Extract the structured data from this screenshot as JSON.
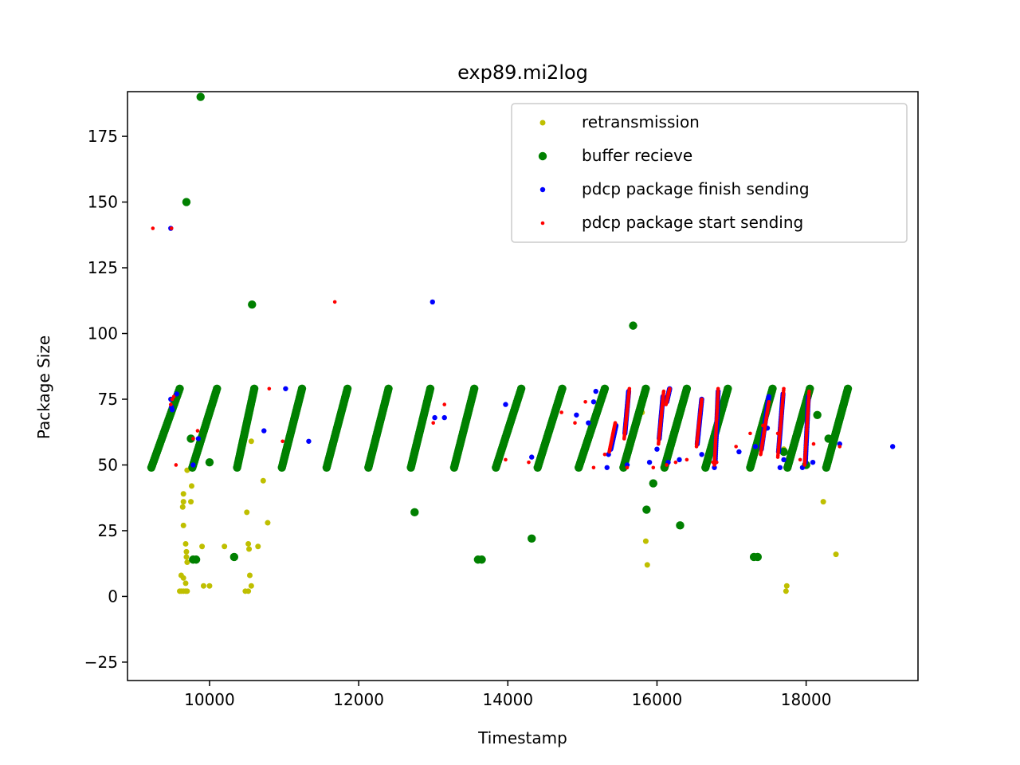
{
  "chart_data": {
    "type": "scatter",
    "title": "exp89.mi2log",
    "xlabel": "Timestamp",
    "ylabel": "Package Size",
    "xlim": [
      8900,
      19500
    ],
    "ylim": [
      -32,
      192
    ],
    "x_ticks": [
      10000,
      12000,
      14000,
      16000,
      18000
    ],
    "y_ticks": [
      -25,
      0,
      25,
      50,
      75,
      100,
      125,
      150,
      175
    ],
    "y_tick_labels": [
      "−25",
      "0",
      "25",
      "50",
      "75",
      "100",
      "125",
      "150",
      "175"
    ],
    "grid": false,
    "legend_position": "top-right",
    "colors": {
      "retransmission": "#bfbf00",
      "buffer_recieve": "#008000",
      "pdcp_finish": "#0000ff",
      "pdcp_start": "#ff0000"
    },
    "series": [
      {
        "name": "retransmission",
        "marker": "yellow-dot",
        "points": [
          [
            9600,
            2
          ],
          [
            9620,
            2
          ],
          [
            9650,
            2
          ],
          [
            9680,
            2
          ],
          [
            9700,
            2
          ],
          [
            9620,
            8
          ],
          [
            9650,
            7
          ],
          [
            9680,
            5
          ],
          [
            9700,
            13
          ],
          [
            9690,
            17
          ],
          [
            9690,
            15
          ],
          [
            9680,
            20
          ],
          [
            9650,
            27
          ],
          [
            9640,
            34
          ],
          [
            9650,
            36
          ],
          [
            9650,
            39
          ],
          [
            9750,
            36
          ],
          [
            9760,
            42
          ],
          [
            9700,
            48
          ],
          [
            9800,
            14
          ],
          [
            9900,
            19
          ],
          [
            9920,
            4
          ],
          [
            10000,
            4
          ],
          [
            10200,
            19
          ],
          [
            10480,
            2
          ],
          [
            10520,
            2
          ],
          [
            10500,
            32
          ],
          [
            10520,
            20
          ],
          [
            10530,
            18
          ],
          [
            10540,
            8
          ],
          [
            10560,
            4
          ],
          [
            10560,
            59
          ],
          [
            10650,
            19
          ],
          [
            10720,
            44
          ],
          [
            10780,
            28
          ],
          [
            15800,
            70
          ],
          [
            15850,
            21
          ],
          [
            15870,
            12
          ],
          [
            17700,
            56
          ],
          [
            17730,
            2
          ],
          [
            17740,
            4
          ],
          [
            18230,
            36
          ],
          [
            18400,
            16
          ]
        ]
      },
      {
        "name": "buffer recieve",
        "marker": "green-dot",
        "ramps": [
          [
            9220,
            9600
          ],
          [
            9770,
            10100
          ],
          [
            10370,
            10600
          ],
          [
            10970,
            11240
          ],
          [
            11570,
            11850
          ],
          [
            12130,
            12400
          ],
          [
            12700,
            12960
          ],
          [
            13280,
            13550
          ],
          [
            13840,
            14180
          ],
          [
            14400,
            14730
          ],
          [
            14950,
            15300
          ],
          [
            15550,
            15850
          ],
          [
            16100,
            16400
          ],
          [
            16650,
            16950
          ],
          [
            17250,
            17550
          ],
          [
            17750,
            18050
          ],
          [
            18270,
            18560
          ]
        ],
        "ramp_y": [
          49,
          79
        ],
        "points": [
          [
            9880,
            190
          ],
          [
            9690,
            150
          ],
          [
            10570,
            111
          ],
          [
            15680,
            103
          ],
          [
            12750,
            32
          ],
          [
            14320,
            22
          ],
          [
            15860,
            33
          ],
          [
            15950,
            43
          ],
          [
            16310,
            27
          ],
          [
            9780,
            14
          ],
          [
            9820,
            14
          ],
          [
            10330,
            15
          ],
          [
            13600,
            14
          ],
          [
            13650,
            14
          ],
          [
            17300,
            15
          ],
          [
            17350,
            15
          ],
          [
            10000,
            51
          ],
          [
            9750,
            60
          ],
          [
            17700,
            55
          ],
          [
            18000,
            50
          ],
          [
            18150,
            69
          ],
          [
            18300,
            60
          ]
        ]
      },
      {
        "name": "pdcp package finish sending",
        "marker": "blue-dot",
        "points": [
          [
            9480,
            140
          ],
          [
            9480,
            75
          ],
          [
            9490,
            72
          ],
          [
            9500,
            71
          ],
          [
            9560,
            77
          ],
          [
            9780,
            50
          ],
          [
            9850,
            60
          ],
          [
            10730,
            63
          ],
          [
            11020,
            79
          ],
          [
            11330,
            59
          ],
          [
            12990,
            112
          ],
          [
            13020,
            68
          ],
          [
            13150,
            68
          ],
          [
            13970,
            73
          ],
          [
            14320,
            53
          ],
          [
            14920,
            69
          ],
          [
            15080,
            66
          ],
          [
            15150,
            74
          ],
          [
            15180,
            78
          ],
          [
            15330,
            49
          ],
          [
            15350,
            54
          ],
          [
            15600,
            50
          ],
          [
            15900,
            51
          ],
          [
            16000,
            56
          ],
          [
            16150,
            51
          ],
          [
            16300,
            52
          ],
          [
            16600,
            54
          ],
          [
            16770,
            49
          ],
          [
            17100,
            55
          ],
          [
            17320,
            57
          ],
          [
            17480,
            64
          ],
          [
            17650,
            49
          ],
          [
            17700,
            52
          ],
          [
            17950,
            49
          ],
          [
            18090,
            51
          ],
          [
            18450,
            58
          ],
          [
            19160,
            57
          ]
        ],
        "ramps": [
          [
            15380,
            15450,
            56,
            65
          ],
          [
            15570,
            15620,
            62,
            78
          ],
          [
            16030,
            16080,
            60,
            76
          ],
          [
            16130,
            16170,
            74,
            79
          ],
          [
            16540,
            16600,
            58,
            75
          ],
          [
            16780,
            16820,
            51,
            78
          ],
          [
            17400,
            17500,
            56,
            76
          ],
          [
            17630,
            17690,
            55,
            77
          ],
          [
            17990,
            18030,
            51,
            76
          ]
        ]
      },
      {
        "name": "pdcp package start sending",
        "marker": "red-dot",
        "points": [
          [
            9240,
            140
          ],
          [
            9490,
            140
          ],
          [
            9480,
            73
          ],
          [
            9500,
            75
          ],
          [
            9520,
            76
          ],
          [
            9550,
            50
          ],
          [
            9780,
            60
          ],
          [
            9840,
            63
          ],
          [
            10800,
            79
          ],
          [
            10980,
            59
          ],
          [
            11680,
            112
          ],
          [
            13000,
            66
          ],
          [
            13150,
            73
          ],
          [
            13970,
            52
          ],
          [
            14280,
            51
          ],
          [
            14720,
            70
          ],
          [
            14900,
            66
          ],
          [
            15040,
            74
          ],
          [
            15150,
            49
          ],
          [
            15300,
            54
          ],
          [
            15600,
            49
          ],
          [
            15950,
            49
          ],
          [
            16130,
            50
          ],
          [
            16250,
            51
          ],
          [
            16400,
            52
          ],
          [
            16750,
            51
          ],
          [
            16800,
            51
          ],
          [
            17060,
            57
          ],
          [
            17250,
            62
          ],
          [
            17420,
            65
          ],
          [
            17620,
            62
          ],
          [
            17920,
            52
          ],
          [
            18100,
            58
          ],
          [
            18450,
            57
          ]
        ],
        "ramps": [
          [
            15360,
            15440,
            55,
            66
          ],
          [
            15560,
            15630,
            60,
            79
          ],
          [
            16020,
            16090,
            58,
            78
          ],
          [
            16120,
            16170,
            73,
            79
          ],
          [
            16530,
            16600,
            57,
            75
          ],
          [
            16770,
            16820,
            50,
            79
          ],
          [
            17390,
            17500,
            54,
            74
          ],
          [
            17620,
            17700,
            53,
            79
          ],
          [
            17980,
            18040,
            50,
            78
          ]
        ]
      }
    ]
  }
}
